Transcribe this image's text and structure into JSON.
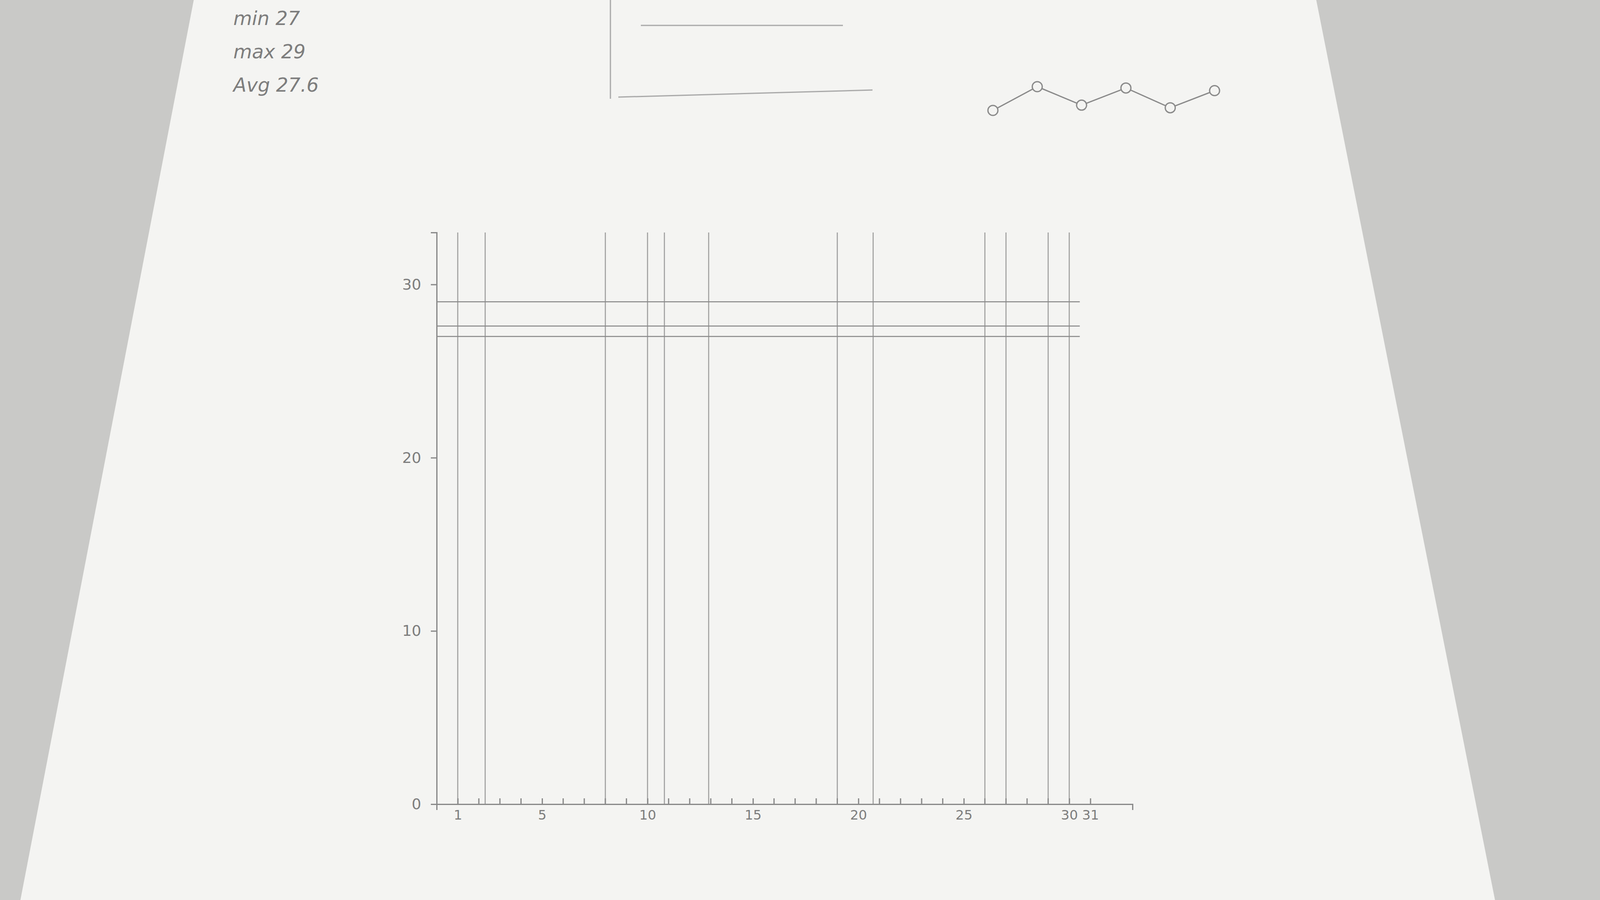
{
  "chart_data": [
    {
      "type": "rule",
      "xlim": [
        0,
        33
      ],
      "ylim": [
        0,
        33
      ],
      "xticks": [
        1,
        5,
        10,
        15,
        20,
        25,
        30,
        31
      ],
      "x_minor_ticks": [
        2,
        3,
        4,
        6,
        7,
        8,
        9,
        11,
        12,
        13,
        14,
        16,
        17,
        18,
        19,
        21,
        22,
        23,
        24,
        26,
        27,
        28,
        29
      ],
      "yticks": [
        0,
        10,
        20,
        30
      ],
      "annotations": [
        {
          "label": "min",
          "value": 27
        },
        {
          "label": "max",
          "value": 29
        },
        {
          "label": "Avg",
          "value": 27.6
        }
      ],
      "x_lines": [
        1,
        2.3,
        8,
        10,
        10.8,
        12.9,
        19,
        20.7,
        26,
        27,
        29,
        30
      ],
      "color": "#8a8a8a"
    },
    {
      "type": "line",
      "x": [
        1,
        2,
        3,
        4,
        5,
        6
      ],
      "values": [
        0.8,
        2.6,
        1.2,
        2.5,
        1.0,
        2.3
      ],
      "xlim": [
        1,
        6
      ],
      "ylim": [
        0.8,
        2.6
      ],
      "tick_labels": false,
      "marker": "circle",
      "color": "#8a8a8a"
    }
  ]
}
